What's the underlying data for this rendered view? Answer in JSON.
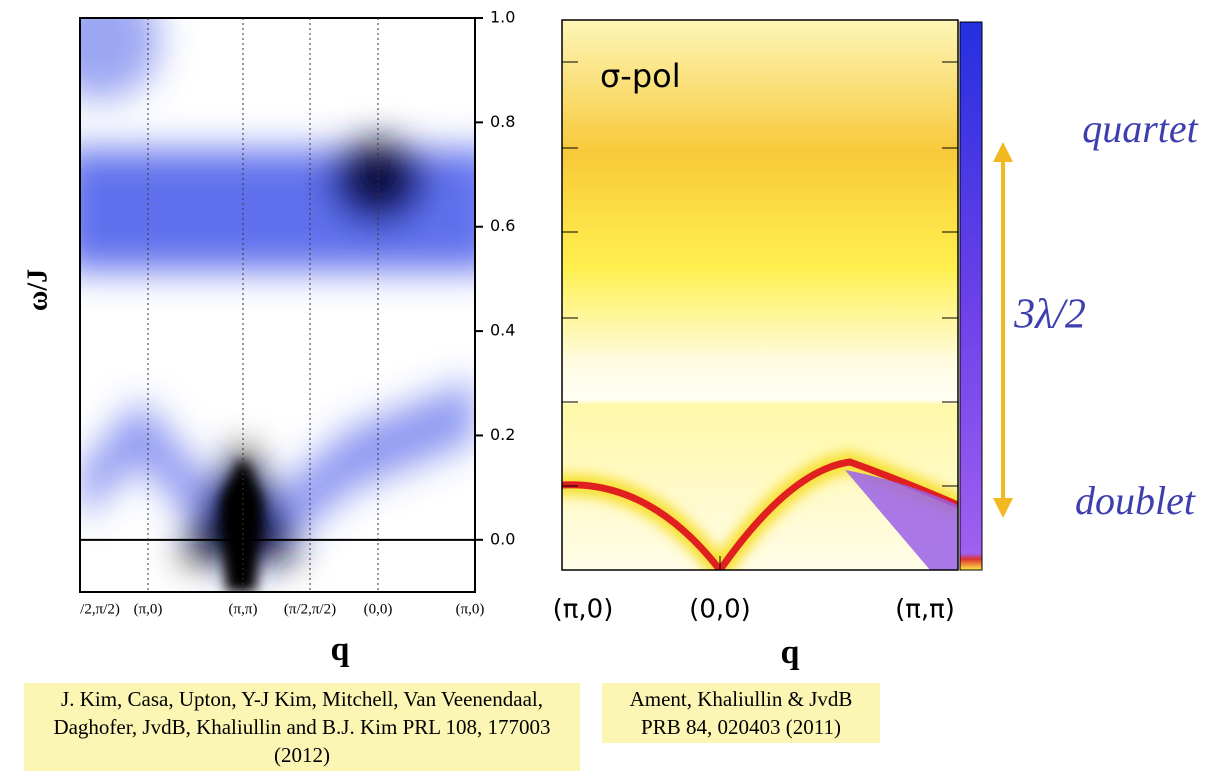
{
  "chart_data": [
    {
      "type": "heatmap",
      "y_label": "ω/J",
      "x_label": "q",
      "categories": [
        "/2,π/2)",
        "(π,0)",
        "(π,π)",
        "(π/2,π/2)",
        "(0,0)",
        "(π,0)"
      ],
      "ylim": [
        -0.1,
        1.0
      ],
      "yticks": [
        {
          "value": 0,
          "label": "0.0"
        },
        0.2,
        0.4,
        0.6,
        0.8,
        {
          "value": 1,
          "label": "1.0"
        }
      ],
      "caption": "J. Kim, Casa, Upton, Y-J Kim, Mitchell, Van Veenendaal, Daghofer, JvdB, Khaliullin and B.J. Kim PRL 108, 177003 (2012)"
    },
    {
      "type": "heatmap",
      "title": "σ-pol",
      "x_label": "q",
      "categories": [
        "(π,0)",
        "(0,0)",
        "(π,π)"
      ],
      "annotations": [
        "quartet",
        "3λ/2",
        "doublet"
      ],
      "caption": "Ament, Khaliullin & JvdB PRB 84, 020403 (2011)"
    }
  ]
}
